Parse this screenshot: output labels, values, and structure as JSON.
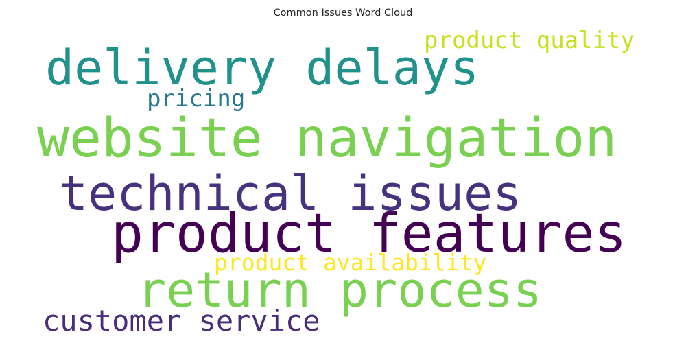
{
  "chart_data": {
    "type": "wordcloud",
    "title": "Common Issues Word Cloud",
    "words": [
      {
        "text": "delivery delays",
        "color": "#21918c"
      },
      {
        "text": "product quality",
        "color": "#c8e020"
      },
      {
        "text": "pricing",
        "color": "#2a788e"
      },
      {
        "text": "website navigation",
        "color": "#7ad151"
      },
      {
        "text": "technical issues",
        "color": "#46327e"
      },
      {
        "text": "product features",
        "color": "#440154"
      },
      {
        "text": "product availability",
        "color": "#fde725"
      },
      {
        "text": "return process",
        "color": "#7ad151"
      },
      {
        "text": "customer service",
        "color": "#472d7b"
      }
    ]
  }
}
